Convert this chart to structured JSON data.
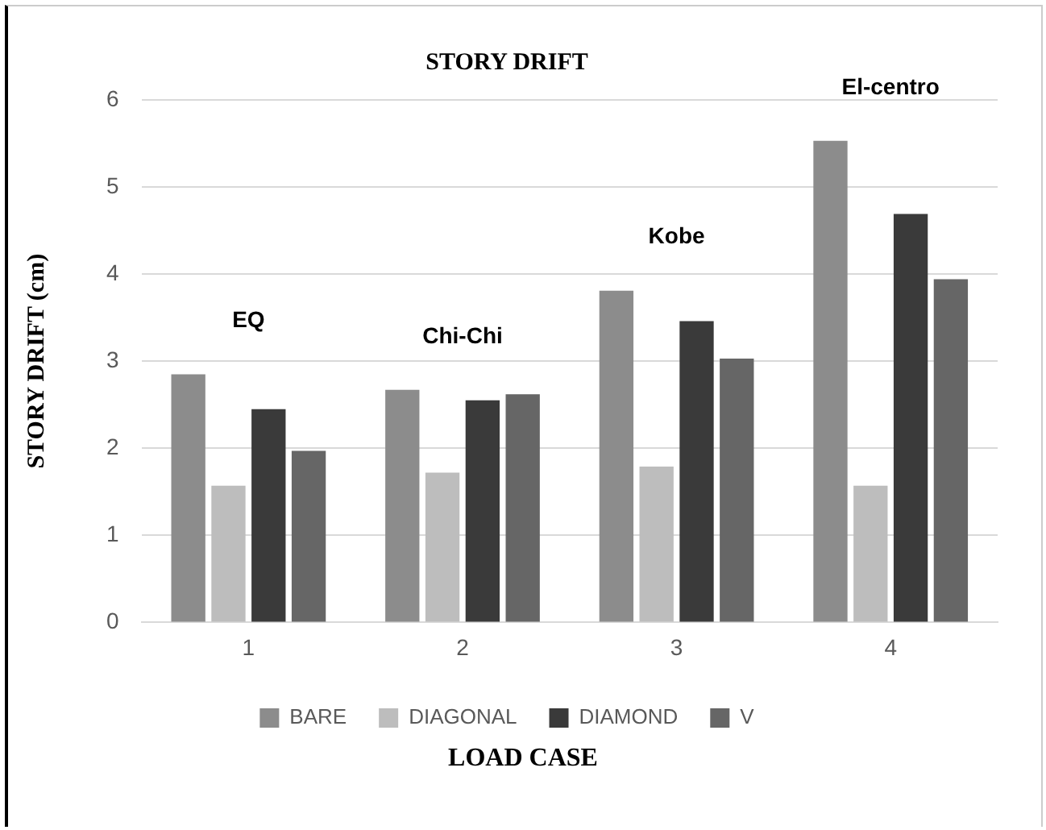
{
  "chart_data": {
    "type": "bar",
    "title": "STORY DRIFT",
    "xlabel": "LOAD CASE",
    "ylabel": "STORY DRIFT (cm)",
    "categories": [
      "1",
      "2",
      "3",
      "4"
    ],
    "series": [
      {
        "name": "BARE",
        "color": "#8c8c8c",
        "values": [
          2.85,
          2.67,
          3.81,
          5.53
        ]
      },
      {
        "name": "DIAGONAL",
        "color": "#bdbdbd",
        "values": [
          1.57,
          1.72,
          1.79,
          1.57
        ]
      },
      {
        "name": "DIAMOND",
        "color": "#3a3a3a",
        "values": [
          2.45,
          2.55,
          3.46,
          4.69
        ]
      },
      {
        "name": "V",
        "color": "#666666",
        "values": [
          1.97,
          2.62,
          3.03,
          3.94
        ]
      }
    ],
    "ylim": [
      0,
      6
    ],
    "yticks": [
      0,
      1,
      2,
      3,
      4,
      5,
      6
    ],
    "grid": "y",
    "legend": "bottom",
    "annotations": [
      "EQ",
      "Chi-Chi",
      "Kobe",
      "El-centro"
    ]
  }
}
